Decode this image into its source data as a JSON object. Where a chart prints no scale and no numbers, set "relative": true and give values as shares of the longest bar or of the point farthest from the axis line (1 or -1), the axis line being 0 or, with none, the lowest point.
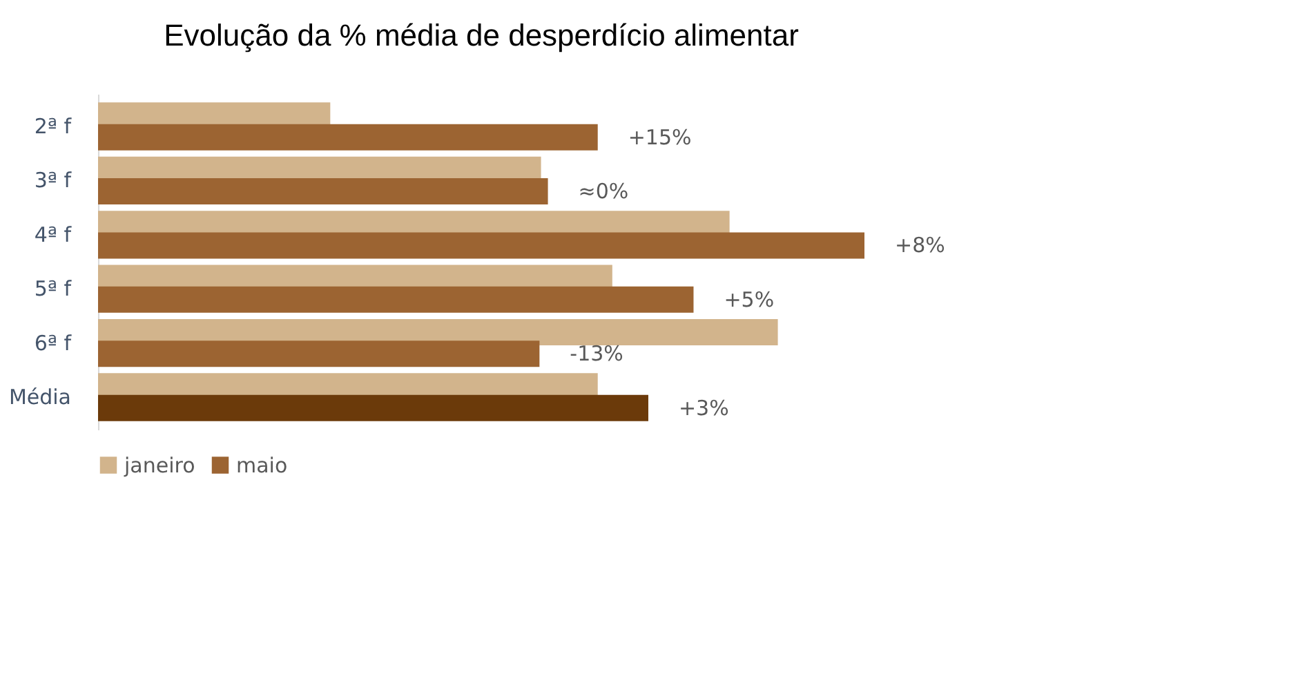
{
  "chart_data": {
    "type": "bar",
    "orientation": "horizontal",
    "relative": true,
    "title": "Evolução da % média de desperdício alimentar",
    "categories": [
      "2ª f",
      "3ª f",
      "4ª f",
      "5ª f",
      "6ª f",
      "Média"
    ],
    "series": [
      {
        "name": "janeiro",
        "color": "#d2b48c",
        "values": [
          0.303,
          0.578,
          0.824,
          0.671,
          0.887,
          0.652
        ]
      },
      {
        "name": "maio",
        "color": "#9c6432",
        "colors": [
          "#9c6432",
          "#9c6432",
          "#9c6432",
          "#9c6432",
          "#9c6432",
          "#6b3a0a"
        ],
        "values": [
          0.652,
          0.587,
          1,
          0.777,
          0.576,
          0.718
        ]
      }
    ],
    "annotations": [
      {
        "text": "+15%",
        "x": 0.652,
        "y": "2ª f"
      },
      {
        "text": "≈0%",
        "x": 0.587,
        "y": "3ª f"
      },
      {
        "text": "+8%",
        "x": 1,
        "y": "4ª f"
      },
      {
        "text": "+5%",
        "x": 0.777,
        "y": "5ª f"
      },
      {
        "text": "-13%",
        "x": 0.576,
        "y": "6ª f"
      },
      {
        "text": "+3%",
        "x": 0.718,
        "y": "Média"
      }
    ],
    "legend": "bottom",
    "grid": false
  }
}
